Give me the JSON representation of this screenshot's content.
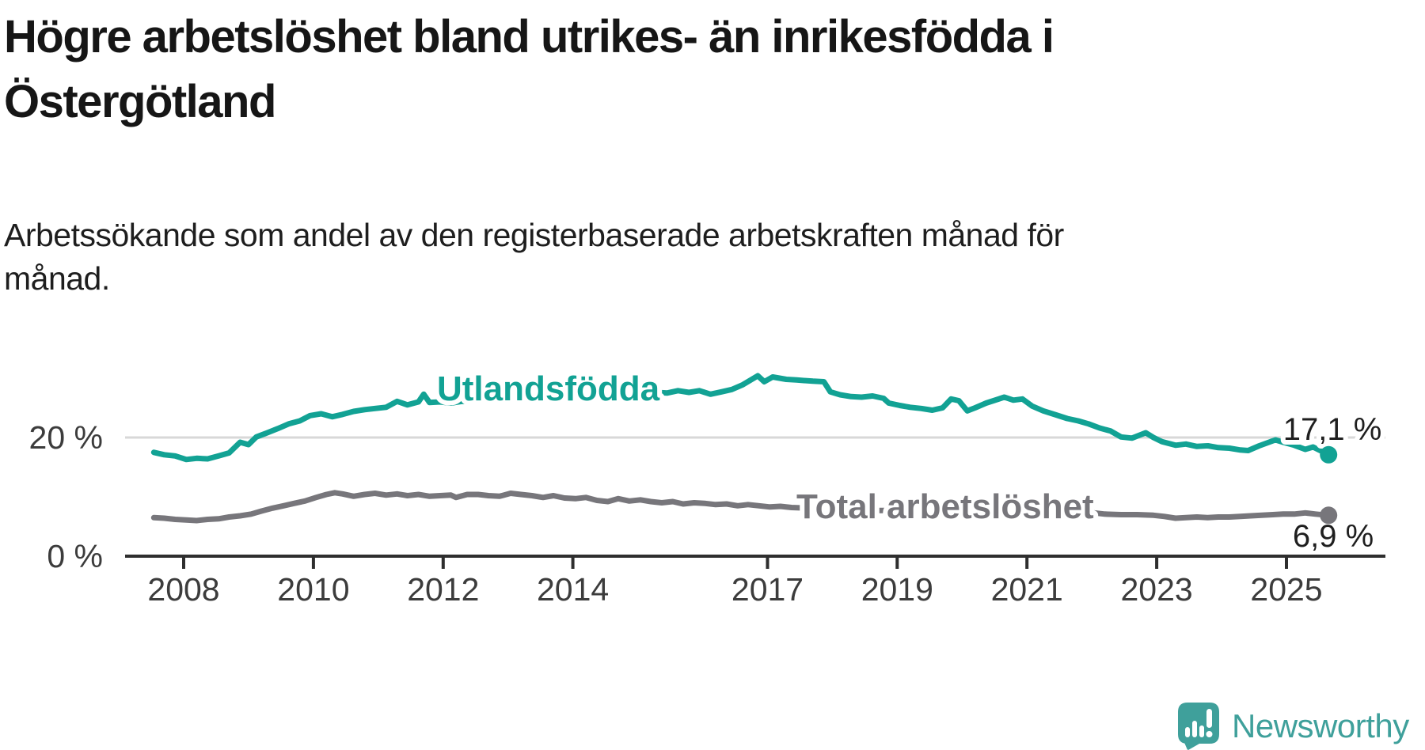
{
  "header": {
    "title_lines": [
      "Högre arbetslöshet bland utrikes- än inrikesfödda i",
      "Östergötland"
    ],
    "subtitle_lines": [
      "Arbetssökande som andel av den registerbaserade arbetskraften månad för",
      "månad."
    ]
  },
  "chart_data": {
    "type": "line",
    "title": "Högre arbetslöshet bland utrikes- än inrikesfödda i Östergötland",
    "subtitle": "Arbetssökande som andel av den registerbaserade arbetskraften månad för månad.",
    "unit": "%",
    "x_range": [
      2007.5,
      2025.75
    ],
    "ylim": [
      0,
      39
    ],
    "grid": "horizontal, only at 20 %",
    "x_ticks": [
      2008,
      2010,
      2012,
      2014,
      2017,
      2019,
      2021,
      2023,
      2025
    ],
    "x_tick_labels": [
      "2008",
      "2010",
      "2012",
      "2014",
      "2017",
      "2019",
      "2021",
      "2023",
      "2025"
    ],
    "y_gridlines": [
      {
        "value": 20,
        "label": "20 %"
      },
      {
        "value": 0,
        "label": "0 %"
      }
    ],
    "series": [
      {
        "name": "Utlandsfödda",
        "color": "#12A294",
        "end_label": "17,1 %",
        "end_value": 17.1,
        "points": [
          [
            2007.54,
            17.5
          ],
          [
            2007.7,
            17.1
          ],
          [
            2007.87,
            16.9
          ],
          [
            2008.04,
            16.3
          ],
          [
            2008.2,
            16.5
          ],
          [
            2008.37,
            16.4
          ],
          [
            2008.54,
            16.9
          ],
          [
            2008.7,
            17.4
          ],
          [
            2008.87,
            19.2
          ],
          [
            2009.0,
            18.8
          ],
          [
            2009.12,
            20.1
          ],
          [
            2009.29,
            20.8
          ],
          [
            2009.45,
            21.5
          ],
          [
            2009.62,
            22.3
          ],
          [
            2009.79,
            22.8
          ],
          [
            2009.95,
            23.7
          ],
          [
            2010.12,
            24.0
          ],
          [
            2010.29,
            23.5
          ],
          [
            2010.45,
            23.9
          ],
          [
            2010.62,
            24.4
          ],
          [
            2010.79,
            24.7
          ],
          [
            2010.95,
            24.9
          ],
          [
            2011.12,
            25.1
          ],
          [
            2011.29,
            26.1
          ],
          [
            2011.45,
            25.5
          ],
          [
            2011.62,
            26.0
          ],
          [
            2011.7,
            27.3
          ],
          [
            2011.79,
            25.9
          ],
          [
            2011.95,
            26.0
          ],
          [
            2012.12,
            25.8
          ],
          [
            2012.29,
            26.1
          ],
          [
            2012.45,
            26.0
          ],
          [
            2012.62,
            26.3
          ],
          [
            2012.79,
            26.2
          ],
          [
            2012.95,
            26.5
          ],
          [
            2013.12,
            26.4
          ],
          [
            2013.29,
            26.7
          ],
          [
            2013.45,
            26.6
          ],
          [
            2013.62,
            26.9
          ],
          [
            2013.79,
            26.8
          ],
          [
            2013.95,
            27.0
          ],
          [
            2014.12,
            26.9
          ],
          [
            2014.29,
            27.1
          ],
          [
            2014.45,
            27.0
          ],
          [
            2014.62,
            27.2
          ],
          [
            2014.79,
            27.1
          ],
          [
            2014.95,
            27.4
          ],
          [
            2015.12,
            27.3
          ],
          [
            2015.29,
            27.6
          ],
          [
            2015.45,
            27.5
          ],
          [
            2015.62,
            27.9
          ],
          [
            2015.79,
            27.6
          ],
          [
            2015.95,
            27.9
          ],
          [
            2016.12,
            27.3
          ],
          [
            2016.29,
            27.7
          ],
          [
            2016.45,
            28.1
          ],
          [
            2016.62,
            28.9
          ],
          [
            2016.85,
            30.4
          ],
          [
            2016.95,
            29.4
          ],
          [
            2017.08,
            30.2
          ],
          [
            2017.29,
            29.8
          ],
          [
            2017.45,
            29.7
          ],
          [
            2017.7,
            29.5
          ],
          [
            2017.87,
            29.4
          ],
          [
            2017.97,
            27.7
          ],
          [
            2018.12,
            27.2
          ],
          [
            2018.29,
            26.9
          ],
          [
            2018.45,
            26.8
          ],
          [
            2018.62,
            27.0
          ],
          [
            2018.79,
            26.6
          ],
          [
            2018.87,
            25.8
          ],
          [
            2019.04,
            25.4
          ],
          [
            2019.2,
            25.1
          ],
          [
            2019.37,
            24.9
          ],
          [
            2019.54,
            24.6
          ],
          [
            2019.7,
            25.0
          ],
          [
            2019.83,
            26.5
          ],
          [
            2019.95,
            26.2
          ],
          [
            2020.08,
            24.5
          ],
          [
            2020.2,
            25.0
          ],
          [
            2020.37,
            25.8
          ],
          [
            2020.54,
            26.4
          ],
          [
            2020.65,
            26.8
          ],
          [
            2020.79,
            26.3
          ],
          [
            2020.93,
            26.5
          ],
          [
            2021.08,
            25.3
          ],
          [
            2021.25,
            24.5
          ],
          [
            2021.45,
            23.8
          ],
          [
            2021.62,
            23.2
          ],
          [
            2021.79,
            22.8
          ],
          [
            2021.95,
            22.3
          ],
          [
            2022.12,
            21.6
          ],
          [
            2022.29,
            21.1
          ],
          [
            2022.45,
            20.1
          ],
          [
            2022.62,
            19.9
          ],
          [
            2022.83,
            20.8
          ],
          [
            2022.95,
            20.0
          ],
          [
            2023.08,
            19.3
          ],
          [
            2023.29,
            18.7
          ],
          [
            2023.45,
            18.9
          ],
          [
            2023.62,
            18.5
          ],
          [
            2023.79,
            18.6
          ],
          [
            2023.95,
            18.3
          ],
          [
            2024.12,
            18.2
          ],
          [
            2024.29,
            17.9
          ],
          [
            2024.41,
            17.8
          ],
          [
            2024.58,
            18.6
          ],
          [
            2024.83,
            19.6
          ],
          [
            2024.95,
            19.2
          ],
          [
            2025.12,
            18.7
          ],
          [
            2025.29,
            18.0
          ],
          [
            2025.41,
            18.4
          ],
          [
            2025.54,
            17.7
          ],
          [
            2025.65,
            17.1
          ]
        ]
      },
      {
        "name": "Total arbetslöshet",
        "color": "#77767B",
        "end_label": "6,9 %",
        "end_value": 6.9,
        "points": [
          [
            2007.54,
            6.5
          ],
          [
            2007.7,
            6.4
          ],
          [
            2007.87,
            6.2
          ],
          [
            2008.04,
            6.1
          ],
          [
            2008.2,
            6.0
          ],
          [
            2008.37,
            6.2
          ],
          [
            2008.54,
            6.3
          ],
          [
            2008.7,
            6.6
          ],
          [
            2008.87,
            6.8
          ],
          [
            2009.04,
            7.1
          ],
          [
            2009.2,
            7.6
          ],
          [
            2009.37,
            8.1
          ],
          [
            2009.54,
            8.5
          ],
          [
            2009.7,
            8.9
          ],
          [
            2009.87,
            9.3
          ],
          [
            2010.04,
            9.9
          ],
          [
            2010.2,
            10.4
          ],
          [
            2010.33,
            10.7
          ],
          [
            2010.45,
            10.5
          ],
          [
            2010.62,
            10.1
          ],
          [
            2010.79,
            10.4
          ],
          [
            2010.95,
            10.6
          ],
          [
            2011.12,
            10.3
          ],
          [
            2011.29,
            10.5
          ],
          [
            2011.45,
            10.2
          ],
          [
            2011.62,
            10.4
          ],
          [
            2011.79,
            10.1
          ],
          [
            2011.95,
            10.2
          ],
          [
            2012.12,
            10.3
          ],
          [
            2012.2,
            9.9
          ],
          [
            2012.37,
            10.4
          ],
          [
            2012.54,
            10.4
          ],
          [
            2012.7,
            10.2
          ],
          [
            2012.87,
            10.1
          ],
          [
            2013.04,
            10.6
          ],
          [
            2013.2,
            10.4
          ],
          [
            2013.37,
            10.2
          ],
          [
            2013.54,
            9.9
          ],
          [
            2013.7,
            10.2
          ],
          [
            2013.87,
            9.8
          ],
          [
            2014.04,
            9.7
          ],
          [
            2014.2,
            9.9
          ],
          [
            2014.37,
            9.4
          ],
          [
            2014.54,
            9.2
          ],
          [
            2014.7,
            9.7
          ],
          [
            2014.87,
            9.3
          ],
          [
            2015.04,
            9.5
          ],
          [
            2015.2,
            9.2
          ],
          [
            2015.37,
            9.0
          ],
          [
            2015.54,
            9.2
          ],
          [
            2015.7,
            8.8
          ],
          [
            2015.87,
            9.0
          ],
          [
            2016.04,
            8.9
          ],
          [
            2016.2,
            8.7
          ],
          [
            2016.37,
            8.8
          ],
          [
            2016.54,
            8.5
          ],
          [
            2016.7,
            8.7
          ],
          [
            2016.87,
            8.5
          ],
          [
            2017.04,
            8.3
          ],
          [
            2017.2,
            8.4
          ],
          [
            2017.37,
            8.2
          ],
          [
            2017.62,
            8.1
          ],
          [
            2017.87,
            7.9
          ],
          [
            2018.12,
            7.8
          ],
          [
            2018.45,
            7.7
          ],
          [
            2018.79,
            7.7
          ],
          [
            2019.12,
            7.6
          ],
          [
            2019.45,
            7.7
          ],
          [
            2019.79,
            7.9
          ],
          [
            2020.04,
            8.3
          ],
          [
            2020.29,
            9.3
          ],
          [
            2020.45,
            9.5
          ],
          [
            2020.62,
            9.3
          ],
          [
            2020.87,
            9.0
          ],
          [
            2021.12,
            8.7
          ],
          [
            2021.37,
            8.2
          ],
          [
            2021.62,
            7.9
          ],
          [
            2021.87,
            7.6
          ],
          [
            2022.04,
            7.3
          ],
          [
            2022.2,
            7.1
          ],
          [
            2022.45,
            7.0
          ],
          [
            2022.7,
            7.0
          ],
          [
            2022.95,
            6.9
          ],
          [
            2023.12,
            6.7
          ],
          [
            2023.29,
            6.4
          ],
          [
            2023.45,
            6.5
          ],
          [
            2023.62,
            6.6
          ],
          [
            2023.79,
            6.5
          ],
          [
            2023.95,
            6.6
          ],
          [
            2024.12,
            6.6
          ],
          [
            2024.29,
            6.7
          ],
          [
            2024.45,
            6.8
          ],
          [
            2024.62,
            6.9
          ],
          [
            2024.79,
            7.0
          ],
          [
            2024.95,
            7.1
          ],
          [
            2025.12,
            7.1
          ],
          [
            2025.29,
            7.3
          ],
          [
            2025.45,
            7.1
          ],
          [
            2025.65,
            6.9
          ]
        ]
      }
    ],
    "legend_position": "labels drawn on the lines"
  },
  "branding": {
    "logo_text": "Newsworthy",
    "brand_color": "#3FA09B"
  }
}
